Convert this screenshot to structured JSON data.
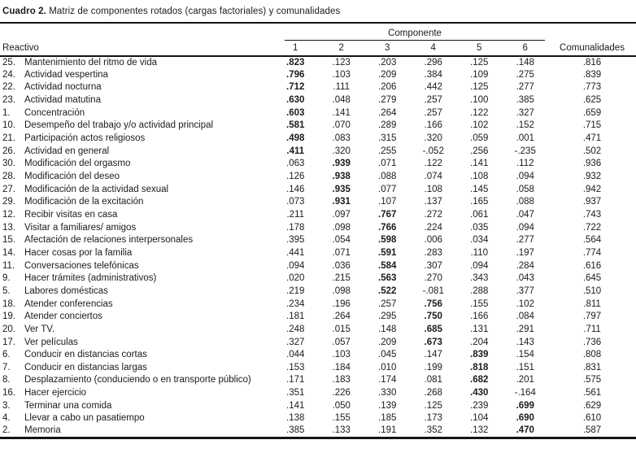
{
  "colors": {
    "ink": "#1b1b1b",
    "background": "#ffffff"
  },
  "title": {
    "label": "Cuadro 2.",
    "text": " Matriz de componentes rotados (cargas factoriales) y comunalidades"
  },
  "table": {
    "group_header": "Componente",
    "col_headers": {
      "reactivo": "Reactivo",
      "components": [
        "1",
        "2",
        "3",
        "4",
        "5",
        "6"
      ],
      "comunalidades": "Comunalidades"
    },
    "rows": [
      {
        "num": "25.",
        "label": "Mantenimiento del ritmo de vida",
        "values": [
          ".823",
          ".123",
          ".203",
          ".296",
          ".125",
          ".148"
        ],
        "comunalidad": ".816",
        "bold_component": 1
      },
      {
        "num": "24.",
        "label": "Actividad vespertina",
        "values": [
          ".796",
          ".103",
          ".209",
          ".384",
          ".109",
          ".275"
        ],
        "comunalidad": ".839",
        "bold_component": 1
      },
      {
        "num": "22.",
        "label": "Actividad nocturna",
        "values": [
          ".712",
          ".111",
          ".206",
          ".442",
          ".125",
          ".277"
        ],
        "comunalidad": ".773",
        "bold_component": 1
      },
      {
        "num": "23.",
        "label": "Actividad matutina",
        "values": [
          ".630",
          ".048",
          ".279",
          ".257",
          ".100",
          ".385"
        ],
        "comunalidad": ".625",
        "bold_component": 1
      },
      {
        "num": "1.",
        "label": "Concentración",
        "values": [
          ".603",
          ".141",
          ".264",
          ".257",
          ".122",
          ".327"
        ],
        "comunalidad": ".659",
        "bold_component": 1
      },
      {
        "num": "10.",
        "label": "Desempeño del trabajo y/o actividad principal",
        "values": [
          ".581",
          ".070",
          ".289",
          ".166",
          ".102",
          ".152"
        ],
        "comunalidad": ".715",
        "bold_component": 1
      },
      {
        "num": "21.",
        "label": "Participación actos religiosos",
        "values": [
          ".498",
          ".083",
          ".315",
          ".320",
          ".059",
          ".001"
        ],
        "comunalidad": ".471",
        "bold_component": 1
      },
      {
        "num": "26.",
        "label": "Actividad en general",
        "values": [
          ".411",
          ".320",
          ".255",
          "-.052",
          ".256",
          "-.235"
        ],
        "comunalidad": ".502",
        "bold_component": 1
      },
      {
        "num": "30.",
        "label": "Modificación del orgasmo",
        "values": [
          ".063",
          ".939",
          ".071",
          ".122",
          ".141",
          ".112"
        ],
        "comunalidad": ".936",
        "bold_component": 2
      },
      {
        "num": "28.",
        "label": "Modificación del deseo",
        "values": [
          ".126",
          ".938",
          ".088",
          ".074",
          ".108",
          ".094"
        ],
        "comunalidad": ".932",
        "bold_component": 2
      },
      {
        "num": "27.",
        "label": "Modificación de la actividad sexual",
        "values": [
          ".146",
          ".935",
          ".077",
          ".108",
          ".145",
          ".058"
        ],
        "comunalidad": ".942",
        "bold_component": 2
      },
      {
        "num": "29.",
        "label": "Modificación de la excitación",
        "values": [
          ".073",
          ".931",
          ".107",
          ".137",
          ".165",
          ".088"
        ],
        "comunalidad": ".937",
        "bold_component": 2
      },
      {
        "num": "12.",
        "label": "Recibir visitas en casa",
        "values": [
          ".211",
          ".097",
          ".767",
          ".272",
          ".061",
          ".047"
        ],
        "comunalidad": ".743",
        "bold_component": 3
      },
      {
        "num": "13.",
        "label": "Visitar a familiares/ amigos",
        "values": [
          ".178",
          ".098",
          ".766",
          ".224",
          ".035",
          ".094"
        ],
        "comunalidad": ".722",
        "bold_component": 3
      },
      {
        "num": "15.",
        "label": "Afectación de relaciones interpersonales",
        "values": [
          ".395",
          ".054",
          ".598",
          ".006",
          ".034",
          ".277"
        ],
        "comunalidad": ".564",
        "bold_component": 3
      },
      {
        "num": "14.",
        "label": "Hacer cosas por la familia",
        "values": [
          ".441",
          ".071",
          ".591",
          ".283",
          ".110",
          ".197"
        ],
        "comunalidad": ".774",
        "bold_component": 3
      },
      {
        "num": "11.",
        "label": "Conversaciones telefónicas",
        "values": [
          ".094",
          ".036",
          ".584",
          ".307",
          ".094",
          ".284"
        ],
        "comunalidad": ".616",
        "bold_component": 3
      },
      {
        "num": "9.",
        "label": "Hacer trámites (administrativos)",
        "values": [
          ".020",
          ".215",
          ".563",
          ".270",
          ".343",
          ".043"
        ],
        "comunalidad": ".645",
        "bold_component": 3
      },
      {
        "num": "5.",
        "label": "Labores domésticas",
        "values": [
          ".219",
          ".098",
          ".522",
          "-.081",
          ".288",
          ".377"
        ],
        "comunalidad": ".510",
        "bold_component": 3
      },
      {
        "num": "18.",
        "label": "Atender conferencias",
        "values": [
          ".234",
          ".196",
          ".257",
          ".756",
          ".155",
          ".102"
        ],
        "comunalidad": ".811",
        "bold_component": 4
      },
      {
        "num": "19.",
        "label": "Atender conciertos",
        "values": [
          ".181",
          ".264",
          ".295",
          ".750",
          ".166",
          ".084"
        ],
        "comunalidad": ".797",
        "bold_component": 4
      },
      {
        "num": "20.",
        "label": "Ver TV.",
        "values": [
          ".248",
          ".015",
          ".148",
          ".685",
          ".131",
          ".291"
        ],
        "comunalidad": ".711",
        "bold_component": 4
      },
      {
        "num": "17.",
        "label": "Ver películas",
        "values": [
          ".327",
          ".057",
          ".209",
          ".673",
          ".204",
          ".143"
        ],
        "comunalidad": ".736",
        "bold_component": 4
      },
      {
        "num": "6.",
        "label": "Conducir en distancias cortas",
        "values": [
          ".044",
          ".103",
          ".045",
          ".147",
          ".839",
          ".154"
        ],
        "comunalidad": ".808",
        "bold_component": 5
      },
      {
        "num": "7.",
        "label": "Conducir en distancias largas",
        "values": [
          ".153",
          ".184",
          ".010",
          ".199",
          ".818",
          ".151"
        ],
        "comunalidad": ".831",
        "bold_component": 5
      },
      {
        "num": "8.",
        "label": "Desplazamiento (conduciendo o en transporte público)",
        "values": [
          ".171",
          ".183",
          ".174",
          ".081",
          ".682",
          ".201"
        ],
        "comunalidad": ".575",
        "bold_component": 5
      },
      {
        "num": "16.",
        "label": "Hacer ejercicio",
        "values": [
          ".351",
          ".226",
          ".330",
          ".268",
          ".430",
          "-.164"
        ],
        "comunalidad": ".561",
        "bold_component": 5
      },
      {
        "num": "3.",
        "label": "Terminar una comida",
        "values": [
          ".141",
          ".050",
          ".139",
          ".125",
          ".239",
          ".699"
        ],
        "comunalidad": ".629",
        "bold_component": 6
      },
      {
        "num": "4.",
        "label": "Llevar a cabo un pasatiempo",
        "values": [
          ".138",
          ".155",
          ".185",
          ".173",
          ".104",
          ".690"
        ],
        "comunalidad": ".610",
        "bold_component": 6
      },
      {
        "num": "2.",
        "label": "Memoria",
        "values": [
          ".385",
          ".133",
          ".191",
          ".352",
          ".132",
          ".470"
        ],
        "comunalidad": ".587",
        "bold_component": 6
      }
    ]
  }
}
